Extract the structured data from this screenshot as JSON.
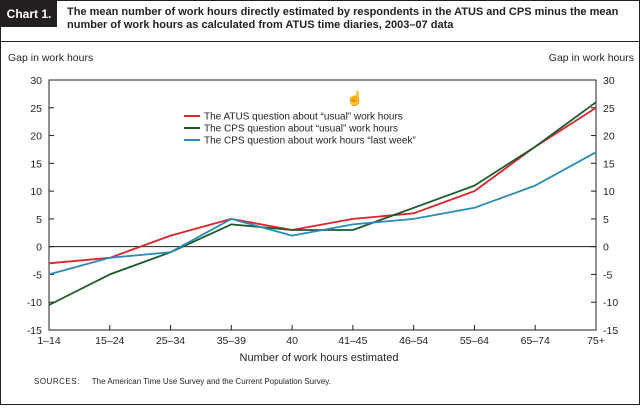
{
  "header": {
    "tag": "Chart 1.",
    "title": "The mean number of work hours directly estimated by respondents in the ATUS and CPS minus the mean number of work hours as calculated from ATUS time diaries, 2003–07 data"
  },
  "source": {
    "label": "SOURCES:",
    "text": "The American Time Use Survey and the Current Population Survey."
  },
  "cursor_icon": "hand-cursor-icon",
  "chart_data": {
    "type": "line",
    "title": "The mean number of work hours directly estimated by respondents in the ATUS and CPS minus the mean number of work hours as calculated from ATUS time diaries, 2003–07 data",
    "ylabel": "Gap in work hours",
    "ylabel_right": "Gap in work hours",
    "xlabel": "Number of work hours estimated",
    "categories": [
      "1–14",
      "15–24",
      "25–34",
      "35–39",
      "40",
      "41–45",
      "46–54",
      "55–64",
      "65–74",
      "75+"
    ],
    "ylim": [
      -15,
      30
    ],
    "yticks": [
      -15,
      -10,
      -5,
      0,
      5,
      10,
      15,
      20,
      25,
      30
    ],
    "grid": false,
    "zero_line": true,
    "legend_position": "upper-left inside",
    "series": [
      {
        "name": "The ATUS question about “usual” work hours",
        "color": "#d9252b",
        "values": [
          -3,
          -2,
          2,
          5,
          3,
          5,
          6,
          10,
          18,
          25
        ]
      },
      {
        "name": "The CPS question about “usual” work hours",
        "color": "#1f5a2c",
        "values": [
          -10.5,
          -5,
          -1,
          4,
          3,
          3,
          7,
          11,
          18,
          26
        ]
      },
      {
        "name": "The CPS question about work hours “last week”",
        "color": "#2b8bb8",
        "values": [
          -5,
          -2,
          -1,
          5,
          2,
          4,
          5,
          7,
          11,
          17
        ]
      }
    ]
  }
}
